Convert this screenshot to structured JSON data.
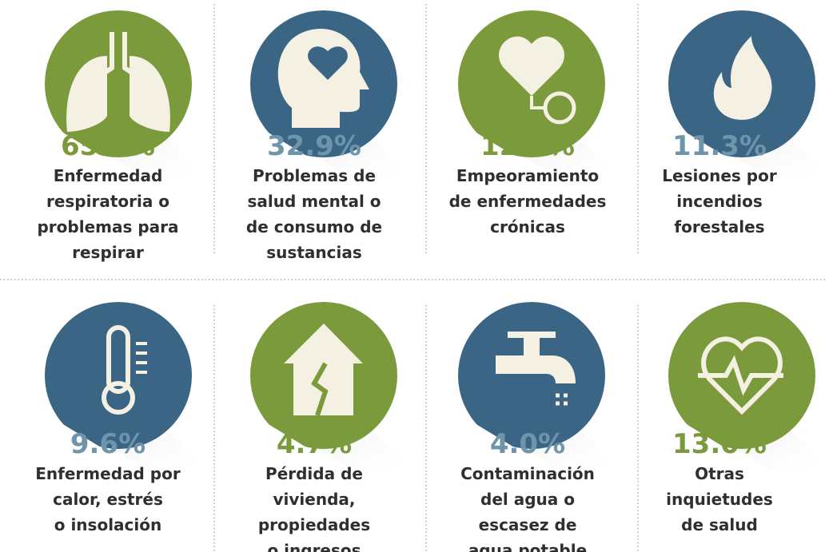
{
  "items": [
    {
      "value": "65.6%",
      "label": [
        "Enfermedad",
        "respiratoria o",
        "problemas para",
        "respirar"
      ]
    },
    {
      "value": "32.9%",
      "label": [
        "Problemas de",
        "salud mental o",
        "de consumo de",
        "sustancias"
      ]
    },
    {
      "value": "12.4%",
      "label": [
        "Empeoramiento",
        "de enfermedades",
        "crónicas"
      ]
    },
    {
      "value": "11.3%",
      "label": [
        "Lesiones por",
        "incendios",
        "forestales"
      ]
    },
    {
      "value": "9.6%",
      "label": [
        "Enfermedad por",
        "calor, estrés",
        "o insolación"
      ]
    },
    {
      "value": "4.7%",
      "label": [
        "Pérdida de",
        "vivienda,",
        "propiedades",
        "o ingresos"
      ]
    },
    {
      "value": "4.0%",
      "label": [
        "Contaminación",
        "del agua o",
        "escasez de",
        "agua potable"
      ]
    },
    {
      "value": "13.0%",
      "label": [
        "Otras",
        "inquietudes",
        "de salud"
      ]
    }
  ]
}
